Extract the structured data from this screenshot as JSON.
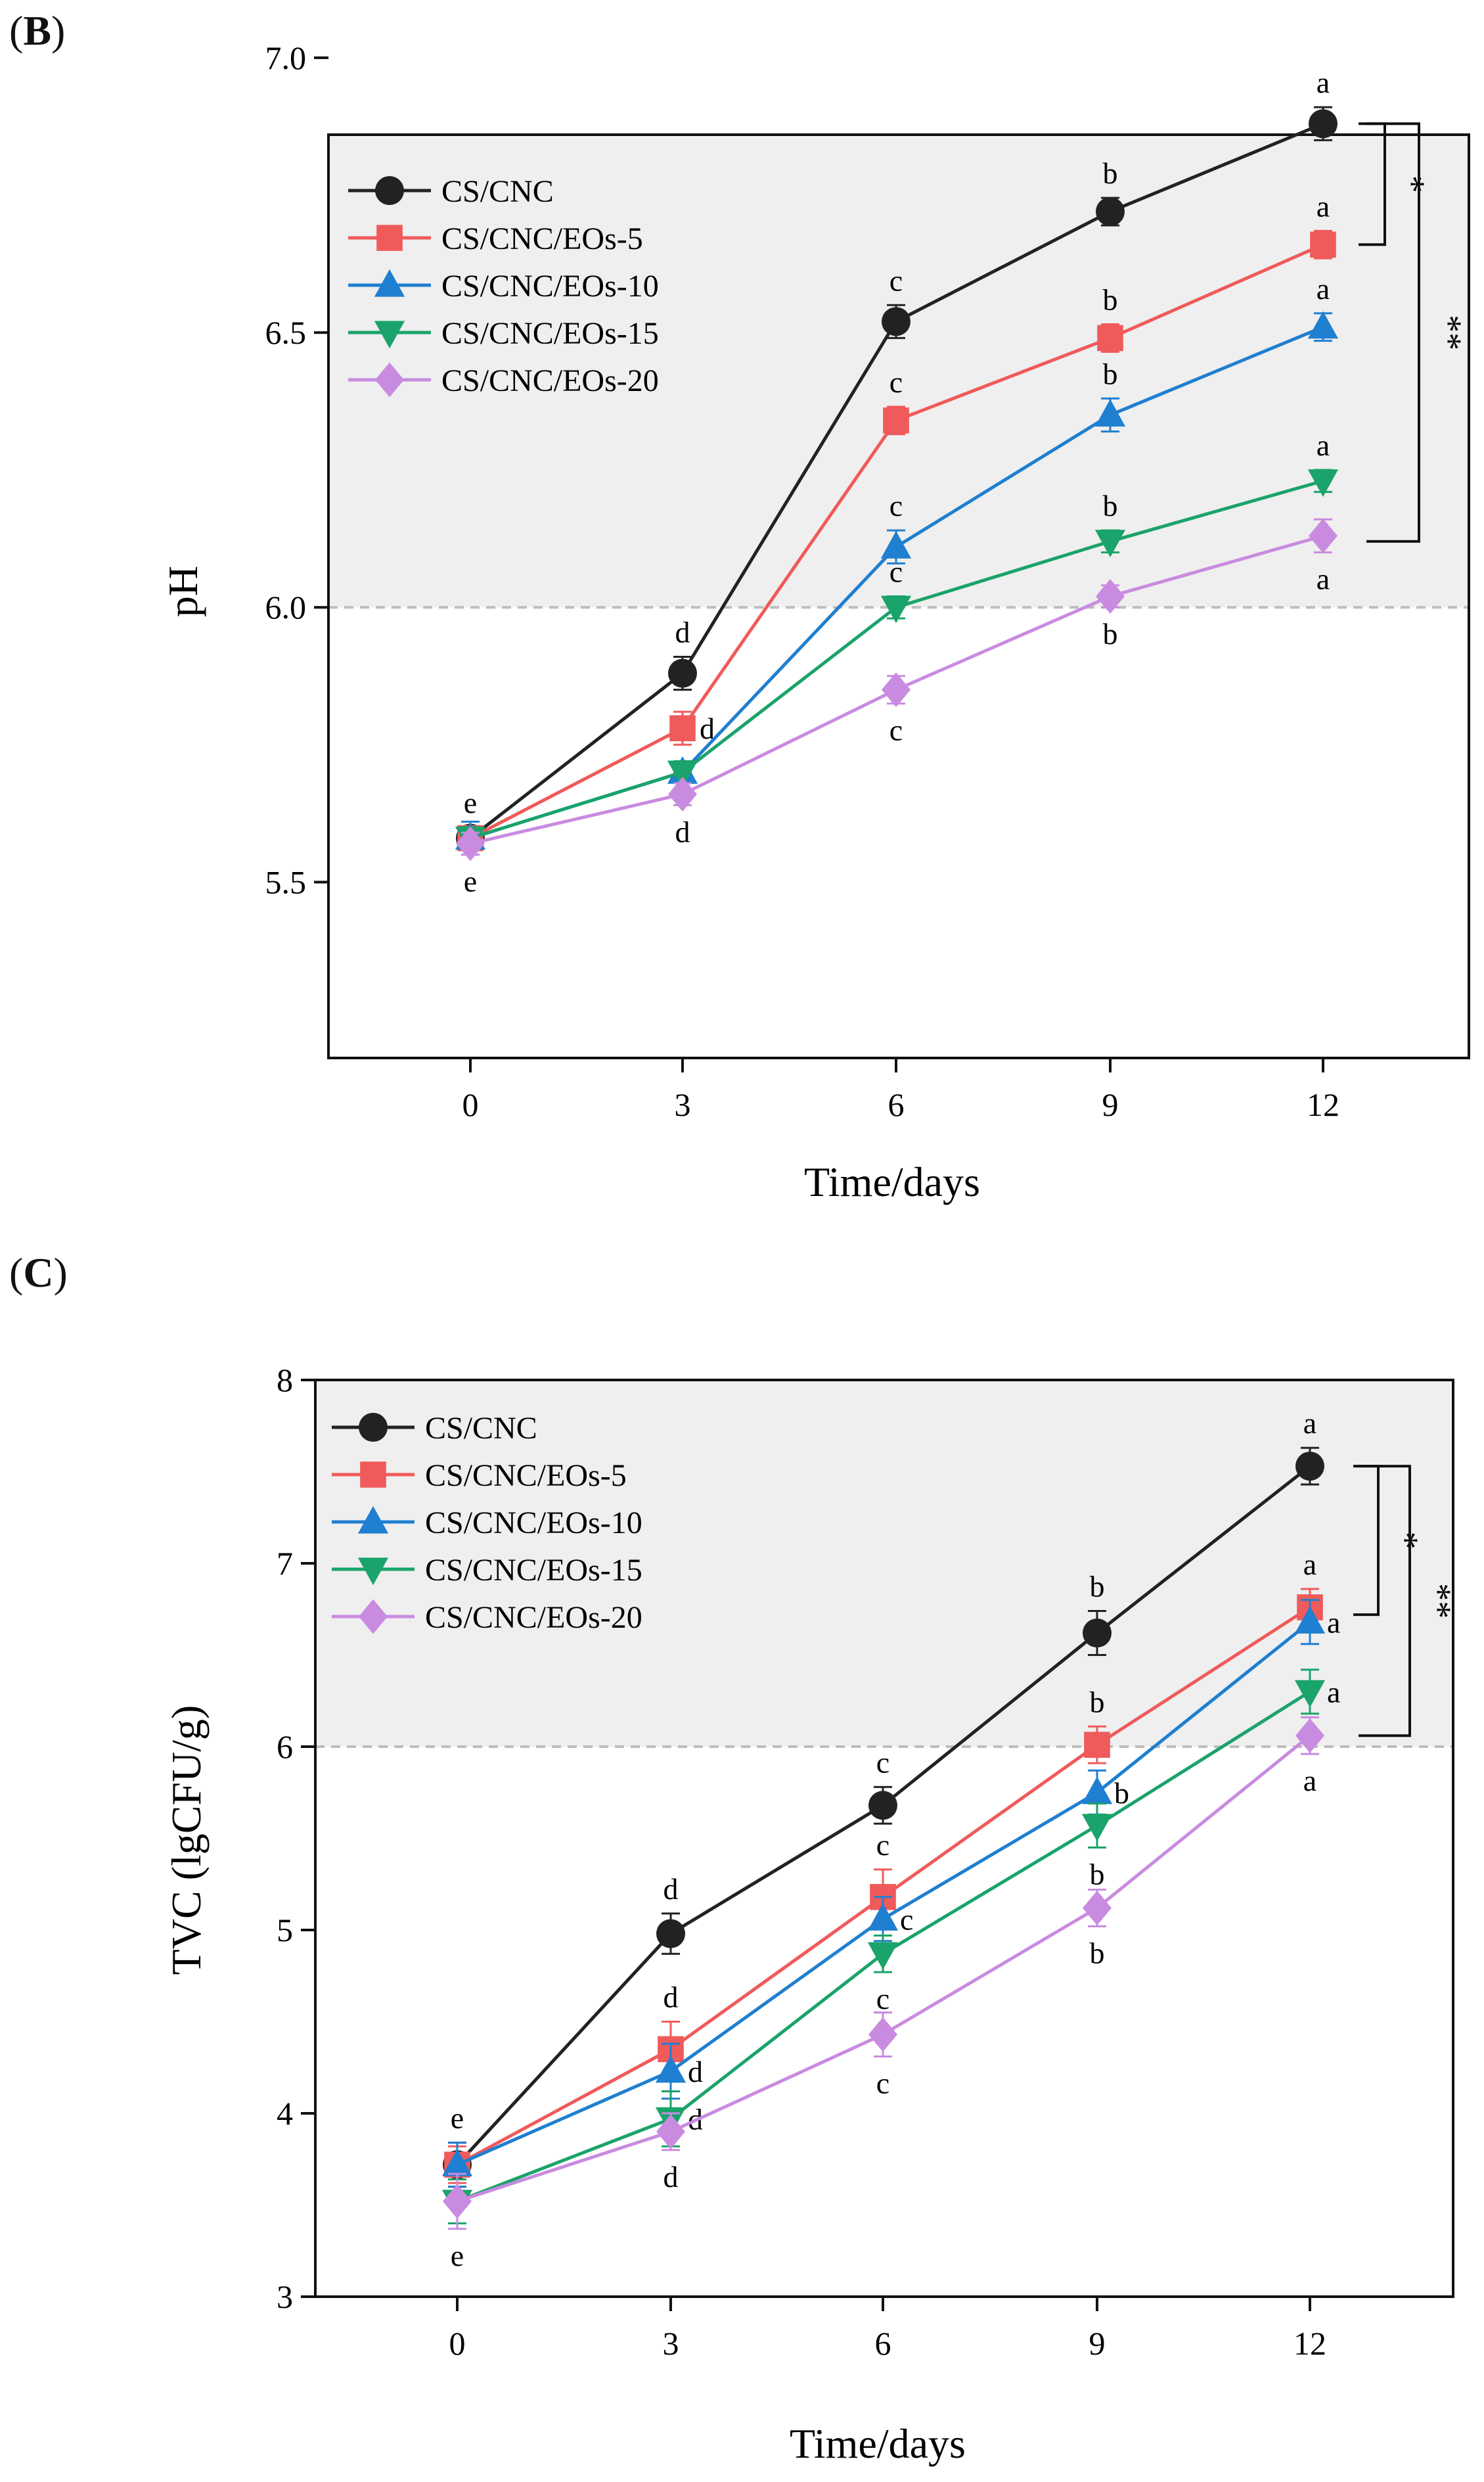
{
  "panels": [
    {
      "label_open": "(",
      "label_letter": "B",
      "label_close": ")"
    },
    {
      "label_open": "(",
      "label_letter": "C",
      "label_close": ")"
    }
  ],
  "colors": {
    "CS/CNC": "#222222",
    "CS/CNC/EOs-5": "#f05a5a",
    "CS/CNC/EOs-10": "#1f7fd0",
    "CS/CNC/EOs-15": "#1aa36a",
    "CS/CNC/EOs-20": "#c98be0",
    "shade": "#efefef",
    "threshold": "#bdbdbd"
  },
  "chart_data": [
    {
      "type": "line",
      "ylabel": "pH",
      "xlabel": "Time/days",
      "x": [
        0,
        3,
        6,
        9,
        12
      ],
      "ylim": [
        5.18,
        6.86
      ],
      "yticks": [
        "5.5",
        "6.0",
        "6.5",
        "7.0"
      ],
      "ytick_values": [
        5.5,
        6.0,
        6.5,
        7.0
      ],
      "xticks": [
        "0",
        "3",
        "6",
        "9",
        "12"
      ],
      "threshold": 6.0,
      "series": [
        {
          "name": "CS/CNC",
          "marker": "circle",
          "values": [
            5.58,
            5.88,
            6.52,
            6.72,
            6.88
          ],
          "err": [
            0.02,
            0.03,
            0.03,
            0.025,
            0.03
          ],
          "letters": [
            "e",
            "d",
            "c",
            "b",
            "a"
          ],
          "letter_pos": [
            "above",
            "above",
            "above",
            "above",
            "above"
          ]
        },
        {
          "name": "CS/CNC/EOs-5",
          "marker": "square",
          "values": [
            5.58,
            5.78,
            6.34,
            6.49,
            6.66
          ],
          "err": [
            0.02,
            0.03,
            0.025,
            0.025,
            0.025
          ],
          "letters": [
            "",
            "d",
            "c",
            "b",
            "a"
          ],
          "letter_pos": [
            "above",
            "right",
            "above",
            "above",
            "above"
          ]
        },
        {
          "name": "CS/CNC/EOs-10",
          "marker": "triangle-up",
          "values": [
            5.58,
            5.7,
            6.11,
            6.35,
            6.51
          ],
          "err": [
            0.03,
            0.02,
            0.03,
            0.03,
            0.025
          ],
          "letters": [
            "",
            "",
            "c",
            "b",
            "a"
          ],
          "letter_pos": [
            "above",
            "above",
            "above",
            "above",
            "above"
          ]
        },
        {
          "name": "CS/CNC/EOs-15",
          "marker": "triangle-down",
          "values": [
            5.58,
            5.7,
            6.0,
            6.12,
            6.23
          ],
          "err": [
            0.02,
            0.02,
            0.02,
            0.02,
            0.02
          ],
          "letters": [
            "",
            "",
            "c",
            "b",
            "a"
          ],
          "letter_pos": [
            "above",
            "above",
            "above",
            "above",
            "above"
          ]
        },
        {
          "name": "CS/CNC/EOs-20",
          "marker": "diamond",
          "values": [
            5.57,
            5.66,
            5.85,
            6.02,
            6.13
          ],
          "err": [
            0.02,
            0.02,
            0.025,
            0.02,
            0.03
          ],
          "letters": [
            "e",
            "d",
            "c",
            "b",
            "a"
          ],
          "letter_pos": [
            "below",
            "below",
            "below",
            "below",
            "below"
          ]
        }
      ],
      "brackets": [
        {
          "label": "*",
          "from": 6.88,
          "to": 6.66
        },
        {
          "label": "**",
          "from": 6.88,
          "to": 6.12
        }
      ]
    },
    {
      "type": "line",
      "ylabel": "TVC (lgCFU/g)",
      "xlabel": "Time/days",
      "x": [
        0,
        3,
        6,
        9,
        12
      ],
      "ylim": [
        3,
        8
      ],
      "yticks": [
        "3",
        "4",
        "5",
        "6",
        "7",
        "8"
      ],
      "ytick_values": [
        3,
        4,
        5,
        6,
        7,
        8
      ],
      "xticks": [
        "0",
        "3",
        "6",
        "9",
        "12"
      ],
      "threshold": 6.0,
      "series": [
        {
          "name": "CS/CNC",
          "marker": "circle",
          "values": [
            3.72,
            4.98,
            5.68,
            6.62,
            7.53
          ],
          "err": [
            0.12,
            0.11,
            0.1,
            0.12,
            0.1
          ],
          "letters": [
            "e",
            "d",
            "c",
            "b",
            "a"
          ],
          "letter_pos": [
            "above",
            "above",
            "above",
            "above",
            "above"
          ]
        },
        {
          "name": "CS/CNC/EOs-5",
          "marker": "square",
          "values": [
            3.72,
            4.35,
            5.18,
            6.01,
            6.76
          ],
          "err": [
            0.1,
            0.15,
            0.15,
            0.1,
            0.1
          ],
          "letters": [
            "",
            "d",
            "c",
            "b",
            "a"
          ],
          "letter_pos": [
            "above",
            "above",
            "above",
            "above",
            "above"
          ]
        },
        {
          "name": "CS/CNC/EOs-10",
          "marker": "triangle-up",
          "values": [
            3.72,
            4.23,
            5.06,
            5.75,
            6.68
          ],
          "err": [
            0.12,
            0.15,
            0.12,
            0.12,
            0.12
          ],
          "letters": [
            "",
            "d",
            "c",
            "b",
            "a"
          ],
          "letter_pos": [
            "above",
            "right",
            "right",
            "right",
            "right"
          ]
        },
        {
          "name": "CS/CNC/EOs-15",
          "marker": "triangle-down",
          "values": [
            3.52,
            3.97,
            4.87,
            5.57,
            6.3
          ],
          "err": [
            0.12,
            0.15,
            0.1,
            0.12,
            0.12
          ],
          "letters": [
            "",
            "d",
            "c",
            "b",
            "a"
          ],
          "letter_pos": [
            "above",
            "right",
            "below",
            "below",
            "right"
          ]
        },
        {
          "name": "CS/CNC/EOs-20",
          "marker": "diamond",
          "values": [
            3.52,
            3.9,
            4.43,
            5.12,
            6.06
          ],
          "err": [
            0.15,
            0.1,
            0.12,
            0.1,
            0.1
          ],
          "letters": [
            "e",
            "d",
            "c",
            "b",
            "a"
          ],
          "letter_pos": [
            "below",
            "below",
            "below",
            "below",
            "below"
          ]
        }
      ],
      "brackets": [
        {
          "label": "*",
          "from": 7.53,
          "to": 6.72
        },
        {
          "label": "**",
          "from": 7.53,
          "to": 6.06
        }
      ]
    }
  ]
}
